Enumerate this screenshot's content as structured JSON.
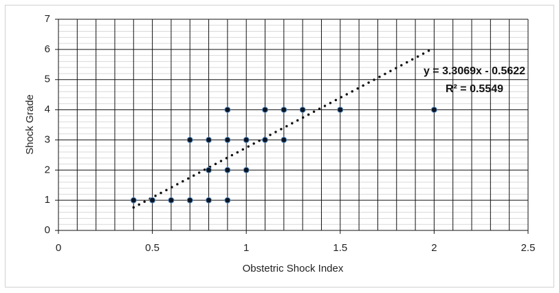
{
  "chart_data": {
    "type": "scatter",
    "x_label": "Obstetric Shock Index",
    "y_label": "Shock Grade",
    "x": [
      0.4,
      0.5,
      0.6,
      0.7,
      0.8,
      0.9,
      0.8,
      0.9,
      1.0,
      0.7,
      0.8,
      0.9,
      1.0,
      1.1,
      1.2,
      0.9,
      1.1,
      1.2,
      1.3,
      1.5,
      2.0
    ],
    "values": [
      1,
      1,
      1,
      1,
      1,
      1,
      2,
      2,
      2,
      3,
      3,
      3,
      3,
      3,
      3,
      4,
      4,
      4,
      4,
      4,
      4
    ],
    "color": "#0b1626",
    "edge_color": "#5b8fc7",
    "xlim": [
      0,
      2.5
    ],
    "ylim": [
      0,
      7
    ],
    "xticks": [
      0,
      0.5,
      1,
      1.5,
      2,
      2.5
    ],
    "yticks": [
      0,
      1,
      2,
      3,
      4,
      5,
      6,
      7
    ],
    "xgrid": [
      0,
      0.1,
      0.2,
      0.3,
      0.4,
      0.5,
      0.6,
      0.7,
      0.8,
      0.9,
      1.0,
      1.1,
      1.2,
      1.3,
      1.4,
      1.5,
      1.6,
      1.7,
      1.8,
      1.9,
      2.0,
      2.1,
      2.2,
      2.3,
      2.4,
      2.5
    ],
    "yminor": [
      0.2,
      0.4,
      0.6,
      0.8,
      1.2,
      1.4,
      1.6,
      1.8,
      2.2,
      2.4,
      2.6,
      2.8,
      3.2,
      3.4,
      3.6,
      3.8,
      4.2,
      4.4,
      4.6,
      4.8,
      5.2,
      5.4,
      5.6,
      5.8,
      6.2,
      6.4,
      6.6,
      6.8
    ],
    "grid": true,
    "trendline": {
      "equation": "y = 3.3069x - 0.5622",
      "r_squared": "R² = 0.5549",
      "slope": 3.3069,
      "intercept": -0.5622
    }
  }
}
